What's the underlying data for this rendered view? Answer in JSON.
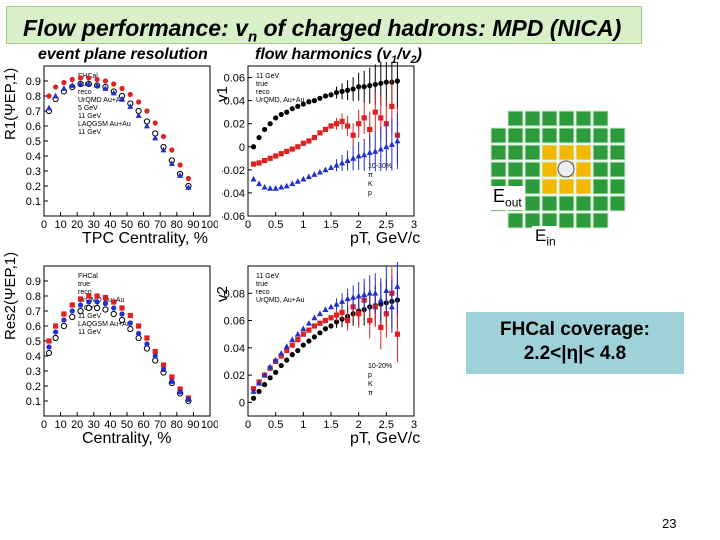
{
  "slide": {
    "title_prefix": "Flow performance: v",
    "title_sub": "n",
    "title_suffix": " of charged hadrons: MPD (NICA)",
    "subtitle_left": "event plane resolution",
    "subtitle_right_prefix": "flow harmonics (v",
    "subtitle_right_mid": "/v",
    "subtitle_right_end": ")",
    "coverage_line1": "FHCal coverage:",
    "coverage_line2": "2.2<|η|< 4.8",
    "eout_label": "E",
    "eout_sub": "out",
    "ein_label": "E",
    "ein_sub": "in",
    "page_number": "23"
  },
  "colors": {
    "title_bg": "#d8f0c8",
    "coverage_bg": "#9ed2d8",
    "det_outer": "#2d9a3c",
    "det_inner": "#f5b800",
    "red": "#e02020",
    "blue": "#1f2fd0"
  },
  "chart_data": [
    {
      "id": "res1",
      "type": "scatter",
      "ylabel": "R1(ΨEP,1)",
      "xlabel": "TPC Centrality, %",
      "xlim": [
        0,
        100
      ],
      "ylim": [
        0,
        1
      ],
      "x_ticks": [
        0,
        10,
        20,
        30,
        40,
        50,
        60,
        70,
        80,
        90,
        100
      ],
      "y_ticks": [
        0.1,
        0.2,
        0.3,
        0.4,
        0.5,
        0.6,
        0.7,
        0.8,
        0.9
      ],
      "legend": [
        "FHCal",
        "true",
        "reco",
        "UrQMD Au+Au",
        "5 GeV",
        "11 GeV",
        "LAQGSM Au+Au",
        "11 GeV"
      ],
      "x": [
        3,
        7,
        12,
        17,
        22,
        27,
        32,
        37,
        42,
        47,
        52,
        57,
        62,
        67,
        72,
        77,
        82,
        87
      ],
      "series": [
        {
          "name": "11 GeV",
          "marker": "filled-circle",
          "color": "#e02020",
          "values": [
            0.8,
            0.86,
            0.89,
            0.91,
            0.92,
            0.92,
            0.91,
            0.9,
            0.88,
            0.85,
            0.81,
            0.76,
            0.7,
            0.62,
            0.53,
            0.44,
            0.34,
            0.25
          ]
        },
        {
          "name": "5 GeV",
          "marker": "open-circle",
          "color": "#000000",
          "values": [
            0.7,
            0.78,
            0.83,
            0.86,
            0.88,
            0.88,
            0.87,
            0.86,
            0.83,
            0.8,
            0.75,
            0.7,
            0.63,
            0.55,
            0.46,
            0.37,
            0.28,
            0.2
          ]
        },
        {
          "name": "11 GeV",
          "marker": "triangle",
          "color": "#1f2fd0",
          "values": [
            0.72,
            0.8,
            0.85,
            0.87,
            0.88,
            0.88,
            0.87,
            0.85,
            0.82,
            0.78,
            0.73,
            0.67,
            0.6,
            0.52,
            0.44,
            0.35,
            0.27,
            0.19
          ]
        }
      ]
    },
    {
      "id": "v1",
      "type": "scatter",
      "ylabel": "v1",
      "xlabel": "pT, GeV/c",
      "xlim": [
        0,
        3
      ],
      "ylim": [
        -0.06,
        0.07
      ],
      "x_ticks": [
        0,
        0.5,
        1,
        1.5,
        2,
        2.5,
        3
      ],
      "y_ticks": [
        -0.06,
        -0.04,
        -0.02,
        0,
        0.02,
        0.04,
        0.06
      ],
      "legend": [
        "11 GeV",
        "true",
        "reco",
        "UrQMD, Au+Au",
        "10-30%",
        "π",
        "K",
        "p"
      ],
      "x": [
        0.1,
        0.2,
        0.3,
        0.4,
        0.5,
        0.6,
        0.7,
        0.8,
        0.9,
        1.0,
        1.1,
        1.2,
        1.3,
        1.4,
        1.5,
        1.6,
        1.7,
        1.8,
        1.9,
        2.0,
        2.1,
        2.2,
        2.3,
        2.4,
        2.5,
        2.6,
        2.7
      ],
      "series": [
        {
          "name": "p",
          "marker": "filled-circle",
          "color": "#000000",
          "values": [
            0.0,
            0.008,
            0.015,
            0.02,
            0.025,
            0.028,
            0.03,
            0.033,
            0.035,
            0.037,
            0.039,
            0.04,
            0.042,
            0.044,
            0.045,
            0.047,
            0.048,
            0.049,
            0.05,
            0.052,
            0.052,
            0.053,
            0.054,
            0.055,
            0.056,
            0.056,
            0.057
          ]
        },
        {
          "name": "K",
          "marker": "filled-square",
          "color": "#e02020",
          "values": [
            -0.015,
            -0.014,
            -0.012,
            -0.01,
            -0.008,
            -0.006,
            -0.004,
            -0.002,
            0.0,
            0.003,
            0.005,
            0.008,
            0.012,
            0.015,
            0.018,
            0.02,
            0.022,
            0.018,
            0.01,
            0.02,
            0.025,
            0.015,
            0.03,
            0.025,
            0.02,
            0.035,
            0.01
          ]
        },
        {
          "name": "π",
          "marker": "triangle",
          "color": "#1f2fd0",
          "values": [
            -0.028,
            -0.032,
            -0.035,
            -0.036,
            -0.036,
            -0.035,
            -0.034,
            -0.032,
            -0.03,
            -0.028,
            -0.026,
            -0.024,
            -0.022,
            -0.02,
            -0.018,
            -0.016,
            -0.014,
            -0.012,
            -0.01,
            -0.008,
            -0.007,
            -0.005,
            -0.004,
            -0.002,
            0.0,
            0.002,
            0.005
          ]
        }
      ]
    },
    {
      "id": "res2",
      "type": "scatter",
      "ylabel": "Res2(ΨEP,1)",
      "xlabel": "Centrality, %",
      "xlim": [
        0,
        100
      ],
      "ylim": [
        0,
        1
      ],
      "x_ticks": [
        0,
        10,
        20,
        30,
        40,
        50,
        60,
        70,
        80,
        90,
        100
      ],
      "y_ticks": [
        0.1,
        0.2,
        0.3,
        0.4,
        0.5,
        0.6,
        0.7,
        0.8,
        0.9
      ],
      "legend": [
        "FHCal",
        "true",
        "reco",
        "UrQMD Au+Au",
        "5 GeV",
        "11 GeV",
        "LAQGSM Au+Au",
        "11 GeV"
      ],
      "x": [
        3,
        7,
        12,
        17,
        22,
        27,
        32,
        37,
        42,
        47,
        52,
        57,
        62,
        67,
        72,
        77,
        82,
        87
      ],
      "series": [
        {
          "name": "11 GeV",
          "marker": "filled-square",
          "color": "#e02020",
          "values": [
            0.5,
            0.6,
            0.68,
            0.74,
            0.78,
            0.8,
            0.8,
            0.79,
            0.76,
            0.72,
            0.67,
            0.6,
            0.52,
            0.43,
            0.34,
            0.26,
            0.18,
            0.12
          ]
        },
        {
          "name": "5 GeV",
          "marker": "open-circle",
          "color": "#000000",
          "values": [
            0.42,
            0.52,
            0.6,
            0.66,
            0.7,
            0.72,
            0.72,
            0.71,
            0.68,
            0.64,
            0.58,
            0.52,
            0.45,
            0.37,
            0.29,
            0.22,
            0.15,
            0.1
          ]
        },
        {
          "name": "11 GeV",
          "marker": "filled-circle",
          "color": "#1f2fd0",
          "values": [
            0.46,
            0.56,
            0.64,
            0.7,
            0.74,
            0.76,
            0.76,
            0.75,
            0.72,
            0.68,
            0.62,
            0.55,
            0.48,
            0.4,
            0.31,
            0.23,
            0.16,
            0.11
          ]
        }
      ]
    },
    {
      "id": "v2",
      "type": "scatter",
      "ylabel": "v2",
      "xlabel": "pT, GeV/c",
      "xlim": [
        0,
        3
      ],
      "ylim": [
        -0.01,
        0.1
      ],
      "x_ticks": [
        0,
        0.5,
        1,
        1.5,
        2,
        2.5,
        3
      ],
      "y_ticks": [
        0,
        0.02,
        0.04,
        0.06,
        0.08
      ],
      "legend": [
        "11 GeV",
        "true",
        "reco",
        "UrQMD, Au+Au",
        "10-20%",
        "p",
        "K",
        "π"
      ],
      "x": [
        0.1,
        0.2,
        0.3,
        0.4,
        0.5,
        0.6,
        0.7,
        0.8,
        0.9,
        1.0,
        1.1,
        1.2,
        1.3,
        1.4,
        1.5,
        1.6,
        1.7,
        1.8,
        1.9,
        2.0,
        2.1,
        2.2,
        2.3,
        2.4,
        2.5,
        2.6,
        2.7
      ],
      "series": [
        {
          "name": "p",
          "marker": "filled-circle",
          "color": "#000000",
          "values": [
            0.003,
            0.008,
            0.013,
            0.018,
            0.022,
            0.027,
            0.031,
            0.035,
            0.038,
            0.042,
            0.045,
            0.048,
            0.051,
            0.054,
            0.056,
            0.059,
            0.061,
            0.063,
            0.065,
            0.067,
            0.068,
            0.07,
            0.071,
            0.072,
            0.073,
            0.074,
            0.075
          ]
        },
        {
          "name": "K",
          "marker": "filled-square",
          "color": "#e02020",
          "values": [
            0.01,
            0.015,
            0.02,
            0.025,
            0.03,
            0.034,
            0.038,
            0.042,
            0.046,
            0.05,
            0.053,
            0.056,
            0.058,
            0.06,
            0.062,
            0.064,
            0.066,
            0.06,
            0.07,
            0.065,
            0.075,
            0.06,
            0.07,
            0.055,
            0.065,
            0.08,
            0.05
          ]
        },
        {
          "name": "π",
          "marker": "triangle",
          "color": "#1f2fd0",
          "values": [
            0.008,
            0.014,
            0.02,
            0.026,
            0.031,
            0.036,
            0.041,
            0.046,
            0.05,
            0.054,
            0.058,
            0.062,
            0.065,
            0.068,
            0.07,
            0.072,
            0.074,
            0.076,
            0.077,
            0.078,
            0.079,
            0.08,
            0.08,
            0.075,
            0.082,
            0.07,
            0.085
          ]
        }
      ]
    }
  ]
}
